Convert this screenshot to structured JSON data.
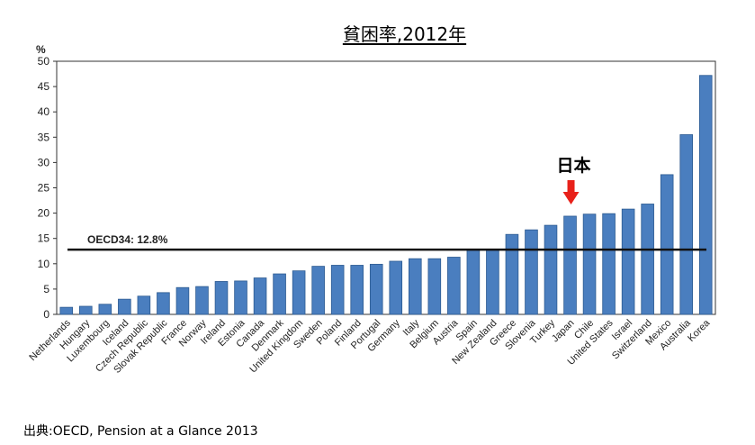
{
  "title": "貧困率,2012年",
  "source": "出典:OECD, Pension at a Glance 2013",
  "chart_data": {
    "type": "bar",
    "ylabel": "%",
    "ylim": [
      0,
      50
    ],
    "yticks": [
      0,
      5,
      10,
      15,
      20,
      25,
      30,
      35,
      40,
      45,
      50
    ],
    "grid": false,
    "categories": [
      "Netherlands",
      "Hungary",
      "Luxembourg",
      "Iceland",
      "Czech Republic",
      "Slovak Republic",
      "France",
      "Norway",
      "Ireland",
      "Estonia",
      "Canada",
      "Denmark",
      "United Kingdom",
      "Sweden",
      "Poland",
      "Finland",
      "Portugal",
      "Germany",
      "Italy",
      "Belgium",
      "Austria",
      "Spain",
      "New Zealand",
      "Greece",
      "Slovenia",
      "Turkey",
      "Japan",
      "Chile",
      "United States",
      "Israel",
      "Switzerland",
      "Mexico",
      "Australia",
      "Korea"
    ],
    "values": [
      1.4,
      1.6,
      2.0,
      3.0,
      3.6,
      4.3,
      5.3,
      5.5,
      6.5,
      6.6,
      7.2,
      8.0,
      8.6,
      9.5,
      9.7,
      9.7,
      9.9,
      10.5,
      11.0,
      11.0,
      11.3,
      12.7,
      12.8,
      15.8,
      16.7,
      17.6,
      19.4,
      19.8,
      19.9,
      20.8,
      21.8,
      27.6,
      35.5,
      47.2
    ],
    "bar_color": "#4a7ebf",
    "reference_line": {
      "label": "OECD34: 12.8%",
      "value": 12.8
    },
    "annotation": {
      "label": "日本",
      "target": "Japan",
      "arrow_color": "#e8211a"
    }
  }
}
